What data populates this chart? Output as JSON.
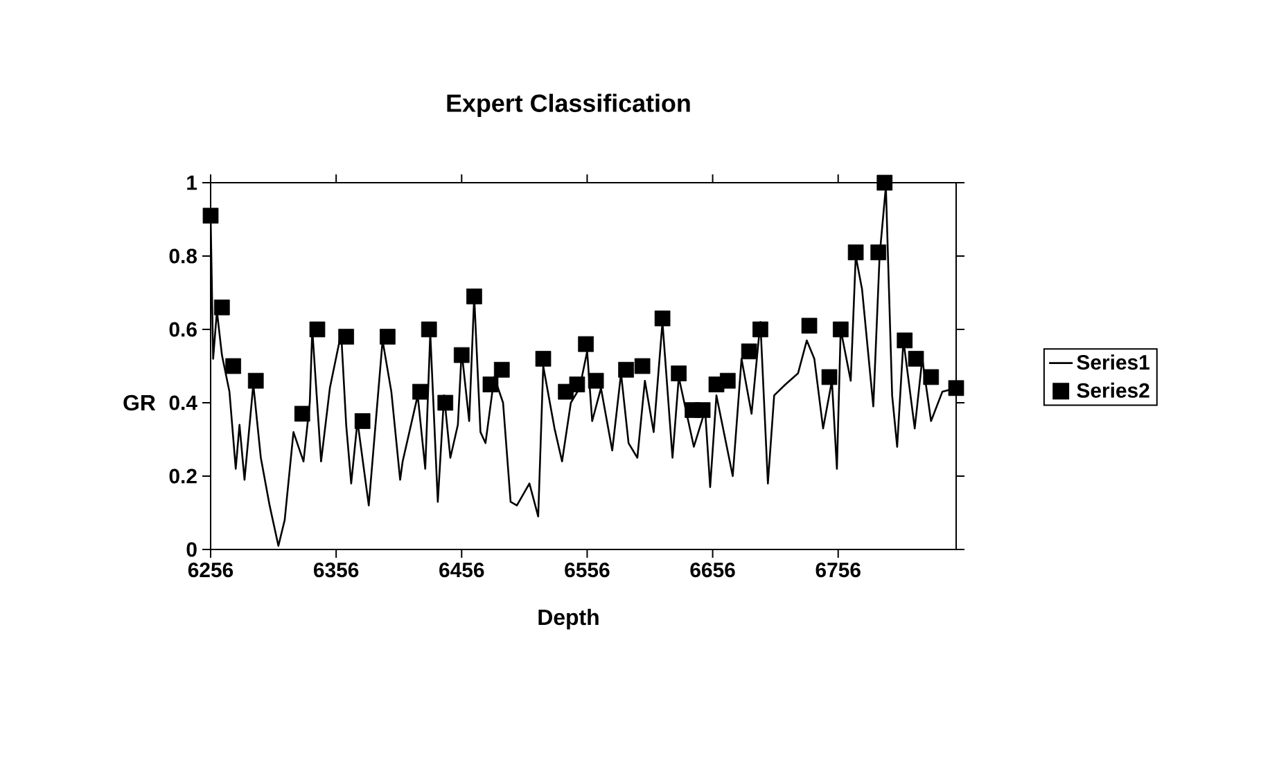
{
  "chart_data": {
    "type": "line",
    "title": "Expert Classification",
    "xlabel": "Depth",
    "ylabel": "GR",
    "xlim": [
      6256,
      6850
    ],
    "xticks": [
      6256,
      6356,
      6456,
      6556,
      6656,
      6756
    ],
    "ylim": [
      0,
      1
    ],
    "yticks": [
      0,
      0.2,
      0.4,
      0.6,
      0.8,
      1
    ],
    "legend": "right",
    "series": [
      {
        "name": "Series1",
        "color": "#000000",
        "marker": "none",
        "line_style": "solid",
        "x": [
          6256,
          6258,
          6261,
          6265,
          6271,
          6276,
          6279,
          6283,
          6290,
          6296,
          6303,
          6310,
          6315,
          6322,
          6330,
          6335,
          6337,
          6344,
          6351,
          6357,
          6360,
          6364,
          6368,
          6373,
          6382,
          6393,
          6400,
          6407,
          6409,
          6421,
          6427,
          6431,
          6437,
          6442,
          6447,
          6453,
          6456,
          6462,
          6466,
          6471,
          6475,
          6482,
          6489,
          6495,
          6500,
          6510,
          6517,
          6521,
          6530,
          6536,
          6543,
          6550,
          6556,
          6560,
          6567,
          6576,
          6583,
          6589,
          6596,
          6602,
          6609,
          6616,
          6624,
          6629,
          6641,
          6650,
          6654,
          6659,
          6672,
          6679,
          6687,
          6694,
          6700,
          6705,
          6714,
          6724,
          6731,
          6737,
          6744,
          6751,
          6755,
          6758,
          6766,
          6770,
          6775,
          6784,
          6789,
          6794,
          6799,
          6803,
          6808,
          6817,
          6823,
          6830,
          6839,
          6850
        ],
        "values": [
          0.91,
          0.52,
          0.65,
          0.53,
          0.43,
          0.22,
          0.34,
          0.19,
          0.45,
          0.25,
          0.12,
          0.01,
          0.08,
          0.32,
          0.24,
          0.4,
          0.6,
          0.24,
          0.44,
          0.54,
          0.59,
          0.34,
          0.18,
          0.35,
          0.12,
          0.57,
          0.43,
          0.19,
          0.24,
          0.42,
          0.22,
          0.59,
          0.13,
          0.42,
          0.25,
          0.34,
          0.54,
          0.35,
          0.69,
          0.32,
          0.29,
          0.47,
          0.4,
          0.13,
          0.12,
          0.18,
          0.09,
          0.5,
          0.33,
          0.24,
          0.4,
          0.44,
          0.54,
          0.35,
          0.44,
          0.27,
          0.48,
          0.29,
          0.25,
          0.46,
          0.32,
          0.62,
          0.25,
          0.47,
          0.28,
          0.38,
          0.17,
          0.42,
          0.2,
          0.52,
          0.37,
          0.62,
          0.18,
          0.42,
          0.45,
          0.48,
          0.57,
          0.52,
          0.33,
          0.46,
          0.22,
          0.6,
          0.46,
          0.8,
          0.71,
          0.39,
          0.8,
          0.99,
          0.42,
          0.28,
          0.57,
          0.33,
          0.52,
          0.35,
          0.43,
          0.44
        ]
      },
      {
        "name": "Series2",
        "type": "scatter",
        "color": "#000000",
        "marker": "square",
        "x": [
          6256,
          6265,
          6274,
          6292,
          6329,
          6341,
          6364,
          6377,
          6397,
          6423,
          6430,
          6443,
          6456,
          6466,
          6479,
          6488,
          6521,
          6539,
          6548,
          6555,
          6563,
          6587,
          6600,
          6616,
          6629,
          6640,
          6648,
          6659,
          6668,
          6685,
          6694,
          6733,
          6749,
          6758,
          6770,
          6788,
          6793,
          6809,
          6818,
          6830,
          6850
        ],
        "values": [
          0.91,
          0.66,
          0.5,
          0.46,
          0.37,
          0.6,
          0.58,
          0.35,
          0.58,
          0.43,
          0.6,
          0.4,
          0.53,
          0.69,
          0.45,
          0.49,
          0.52,
          0.43,
          0.45,
          0.56,
          0.46,
          0.49,
          0.5,
          0.63,
          0.48,
          0.38,
          0.38,
          0.45,
          0.46,
          0.54,
          0.6,
          0.61,
          0.47,
          0.6,
          0.81,
          0.81,
          1.0,
          0.57,
          0.52,
          0.47,
          0.44
        ]
      }
    ]
  }
}
